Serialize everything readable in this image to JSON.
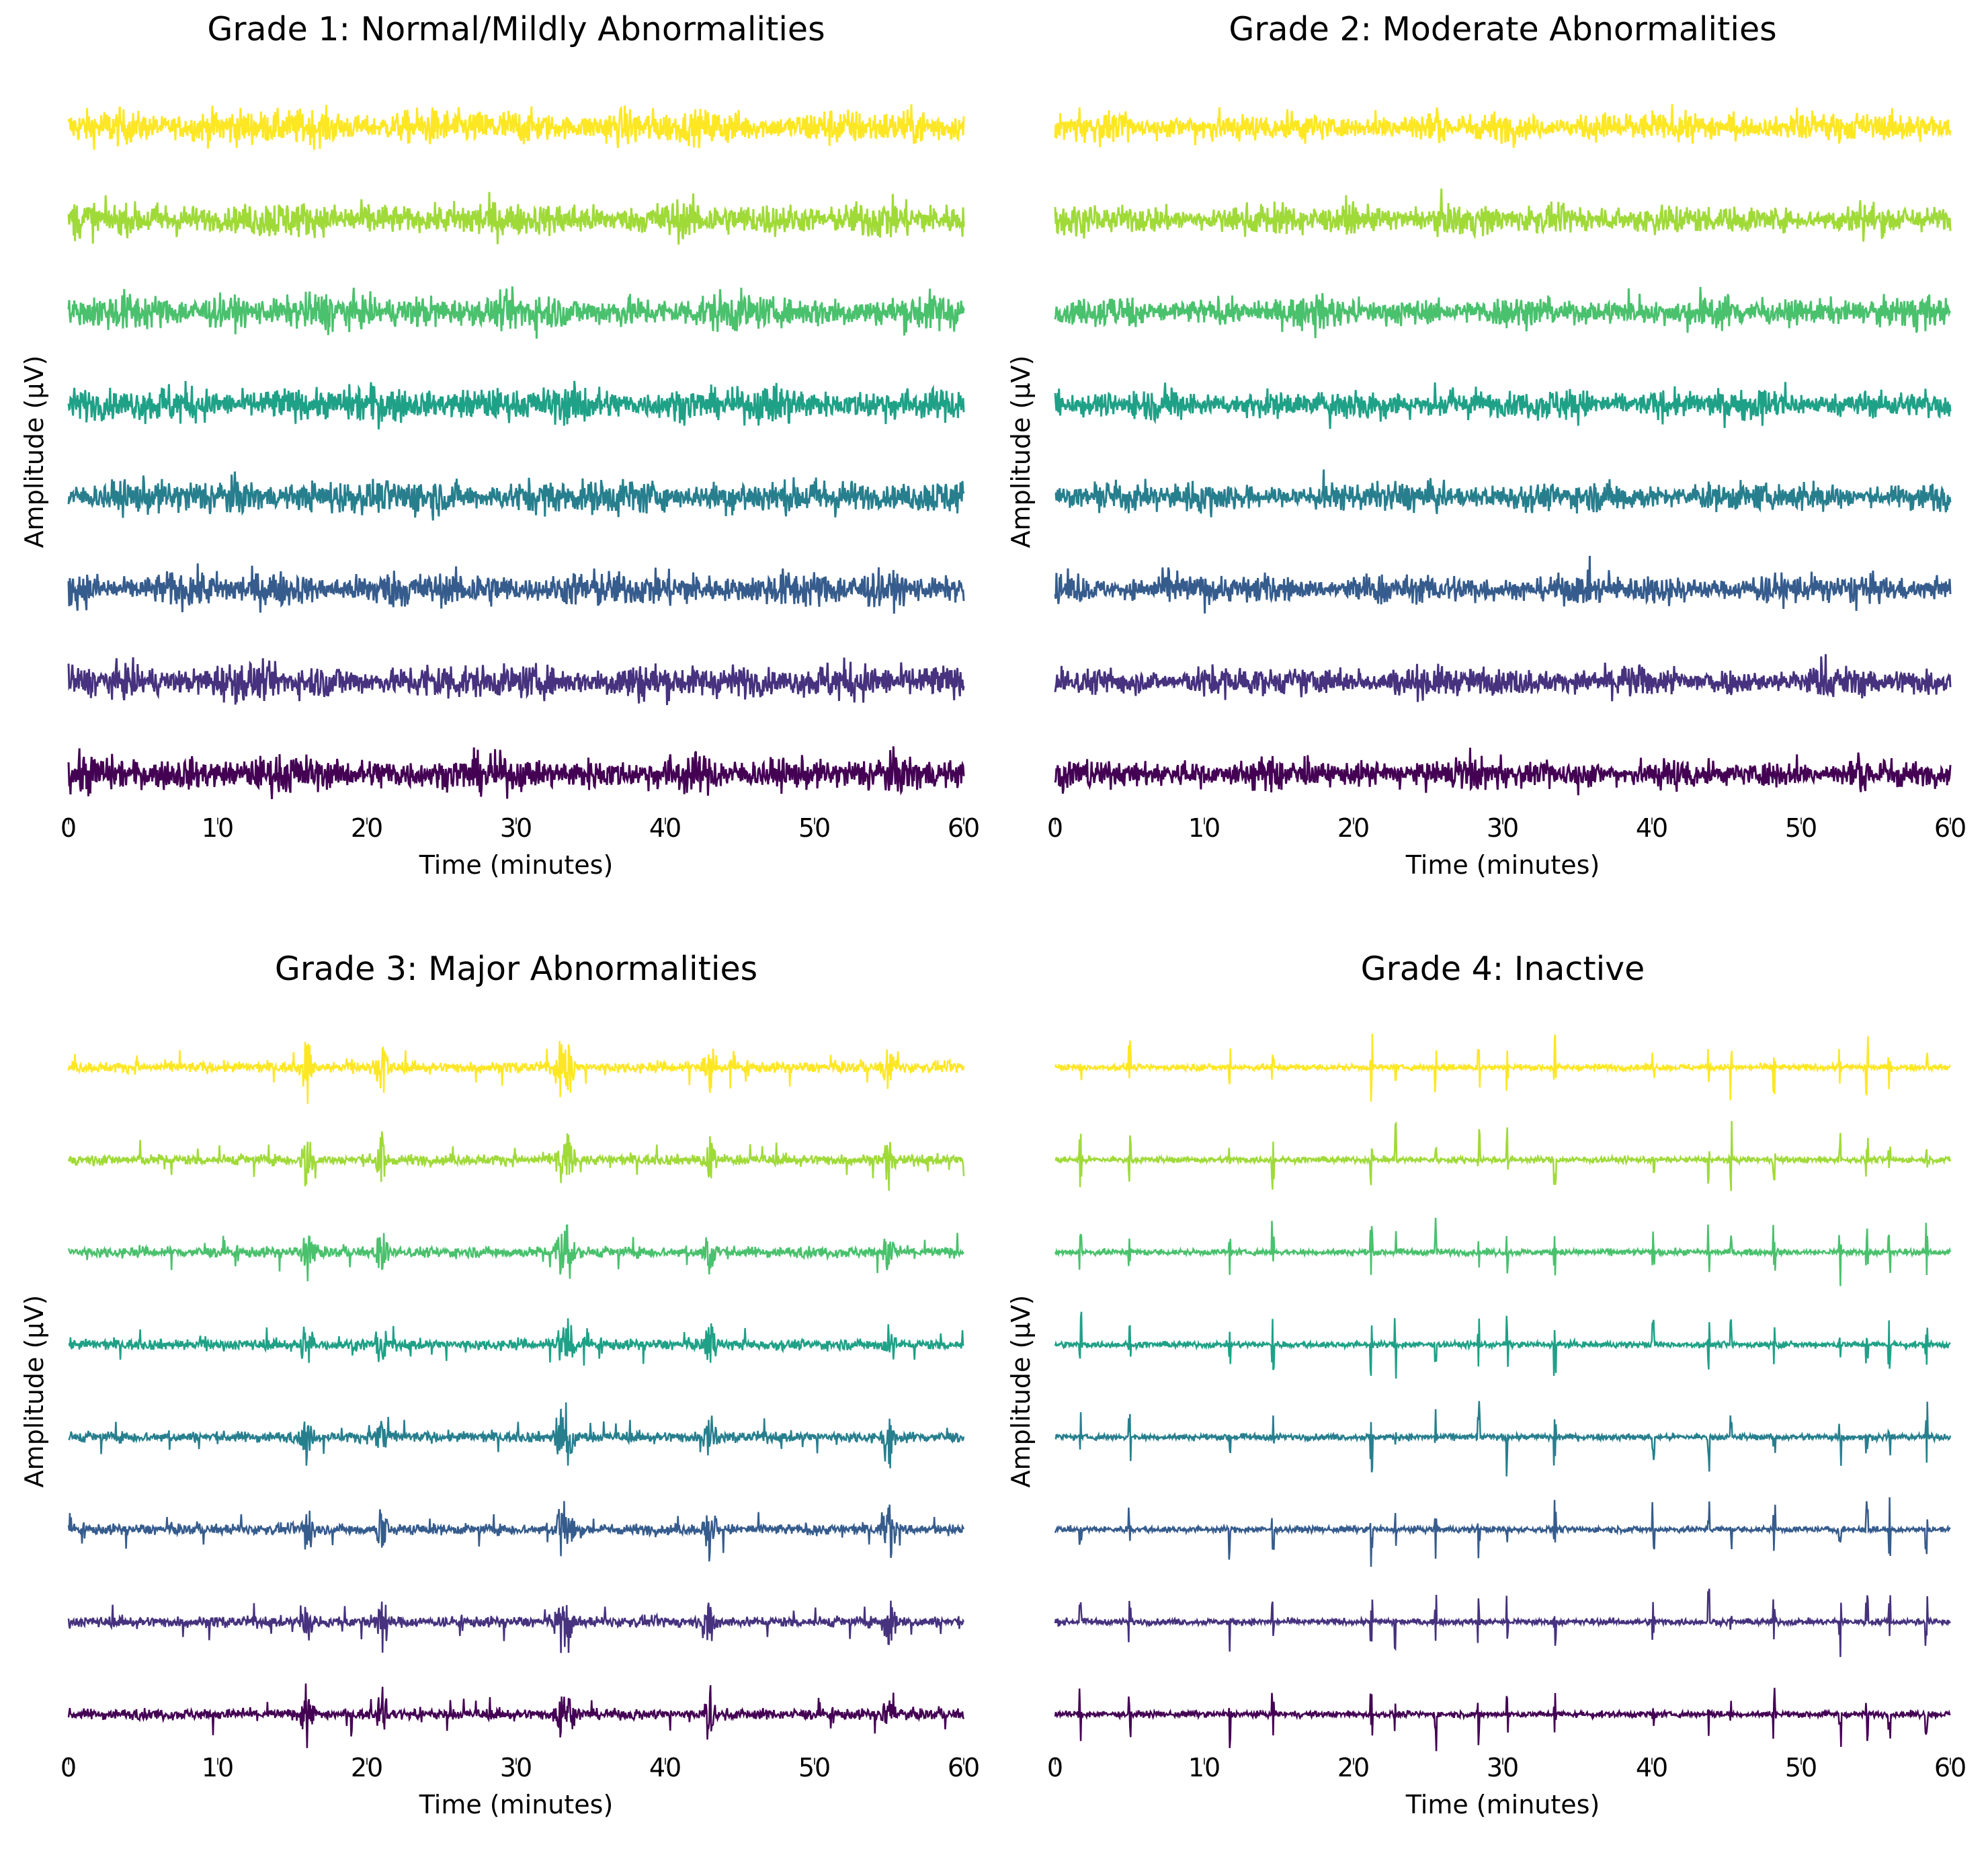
{
  "chart_data": [
    {
      "type": "line",
      "title": "Grade 1: Normal/Mildly Abnormalities",
      "xlabel": "Time (minutes)",
      "ylabel": "Amplitude (μV)",
      "xlim": [
        0,
        60
      ],
      "xticks": [
        "0",
        "10",
        "20",
        "30",
        "40",
        "50",
        "60"
      ],
      "channels": 8,
      "pattern": {
        "kind": "continuous",
        "baseline_amplitude": 1.0,
        "spike_times": []
      }
    },
    {
      "type": "line",
      "title": "Grade 2: Moderate Abnormalities",
      "xlabel": "Time (minutes)",
      "ylabel": "Amplitude (μV)",
      "xlim": [
        0,
        60
      ],
      "xticks": [
        "0",
        "10",
        "20",
        "30",
        "40",
        "50",
        "60"
      ],
      "channels": 8,
      "pattern": {
        "kind": "continuous-spiky",
        "baseline_amplitude": 0.8,
        "spike_times": []
      }
    },
    {
      "type": "line",
      "title": "Grade 3: Major Abnormalities",
      "xlabel": "Time (minutes)",
      "ylabel": "Amplitude (μV)",
      "xlim": [
        0,
        60
      ],
      "xticks": [
        "0",
        "10",
        "20",
        "30",
        "40",
        "50",
        "60"
      ],
      "channels": 8,
      "pattern": {
        "kind": "low-with-bursts",
        "baseline_amplitude": 0.25,
        "spike_times": [
          16,
          21,
          33,
          33.5,
          43,
          55
        ]
      }
    },
    {
      "type": "line",
      "title": "Grade 4: Inactive",
      "xlabel": "Time (minutes)",
      "ylabel": "Amplitude (μV)",
      "xlim": [
        0,
        60
      ],
      "xticks": [
        "0",
        "10",
        "20",
        "30",
        "40",
        "50",
        "60"
      ],
      "channels": 8,
      "pattern": {
        "kind": "suppressed-with-spikes",
        "baseline_amplitude": 0.08,
        "spike_times": [
          1.7,
          5,
          11.7,
          14.6,
          21.2,
          22.8,
          25.5,
          28.4,
          30.3,
          33.5,
          40.1,
          43.8,
          45.3,
          48.2,
          52.6,
          54.4,
          55.9,
          58.4
        ]
      }
    }
  ],
  "colors": [
    "#fde725",
    "#a0da39",
    "#4ac16d",
    "#1fa187",
    "#277f8e",
    "#365c8d",
    "#46327e",
    "#440154"
  ]
}
